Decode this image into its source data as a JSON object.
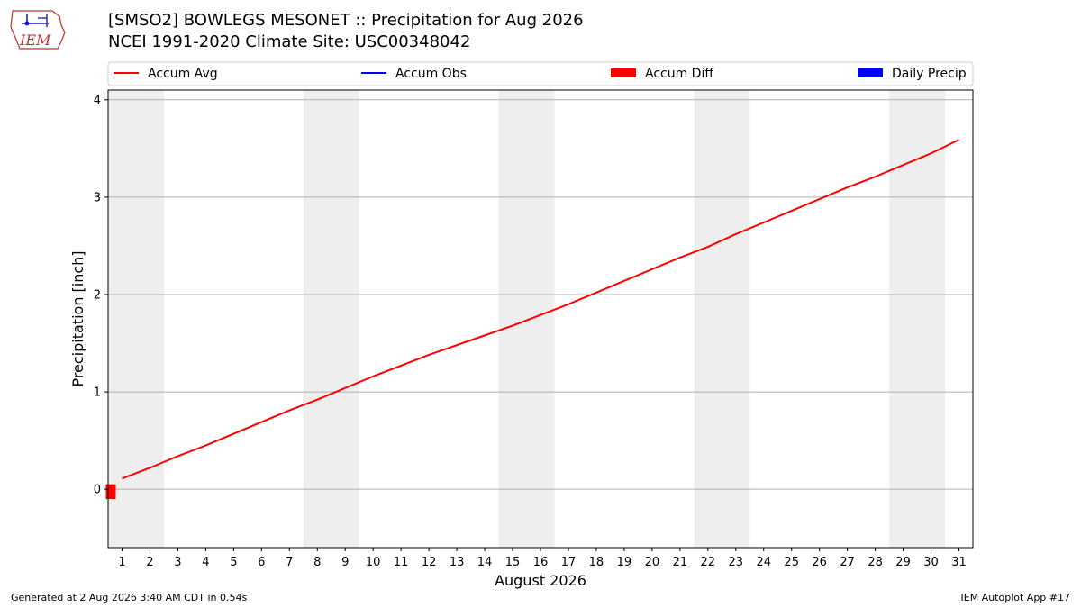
{
  "header": {
    "title_line1": "[SMSO2] BOWLEGS MESONET :: Precipitation for Aug 2026",
    "title_line2": "NCEI 1991-2020 Climate Site: USC00348042",
    "logo_text": "IEM"
  },
  "footer": {
    "left": "Generated at 2 Aug 2026 3:40 AM CDT in 0.54s",
    "right": "IEM Autoplot App #17"
  },
  "colors": {
    "accum_avg": "#ff0000",
    "accum_obs": "#0000ff",
    "accum_diff": "#ff0000",
    "daily_precip": "#0000ff",
    "weekend_band": "#eeeeee",
    "grid": "#b0b0b0"
  },
  "chart_data": {
    "type": "line",
    "xlabel": "August 2026",
    "ylabel": "Precipitation [inch]",
    "xlim": [
      0.5,
      31.5
    ],
    "ylim": [
      -0.6,
      4.1
    ],
    "yticks": [
      0,
      1,
      2,
      3,
      4
    ],
    "xticks": [
      1,
      2,
      3,
      4,
      5,
      6,
      7,
      8,
      9,
      10,
      11,
      12,
      13,
      14,
      15,
      16,
      17,
      18,
      19,
      20,
      21,
      22,
      23,
      24,
      25,
      26,
      27,
      28,
      29,
      30,
      31
    ],
    "grid": "horizontal",
    "legend": {
      "placement": "top",
      "entries": [
        {
          "label": "Accum Avg",
          "kind": "line",
          "color": "#ff0000"
        },
        {
          "label": "Accum Obs",
          "kind": "line",
          "color": "#0000ff"
        },
        {
          "label": "Accum Diff",
          "kind": "patch",
          "color": "#ff0000"
        },
        {
          "label": "Daily Precip",
          "kind": "patch",
          "color": "#0000ff"
        }
      ]
    },
    "weekend_bands": [
      [
        1,
        2
      ],
      [
        8,
        9
      ],
      [
        15,
        16
      ],
      [
        22,
        23
      ],
      [
        29,
        30
      ]
    ],
    "series": [
      {
        "name": "Accum Avg",
        "x": [
          1,
          2,
          3,
          4,
          5,
          6,
          7,
          8,
          9,
          10,
          11,
          12,
          13,
          14,
          15,
          16,
          17,
          18,
          19,
          20,
          21,
          22,
          23,
          24,
          25,
          26,
          27,
          28,
          29,
          30,
          31
        ],
        "values": [
          0.11,
          0.22,
          0.34,
          0.45,
          0.57,
          0.69,
          0.81,
          0.92,
          1.04,
          1.16,
          1.27,
          1.38,
          1.48,
          1.58,
          1.68,
          1.79,
          1.9,
          2.02,
          2.14,
          2.26,
          2.38,
          2.49,
          2.62,
          2.74,
          2.86,
          2.98,
          3.1,
          3.21,
          3.33,
          3.45,
          3.59
        ]
      },
      {
        "name": "Accum Diff",
        "type": "bar",
        "x": [
          1
        ],
        "values": [
          -0.05
        ]
      }
    ]
  }
}
